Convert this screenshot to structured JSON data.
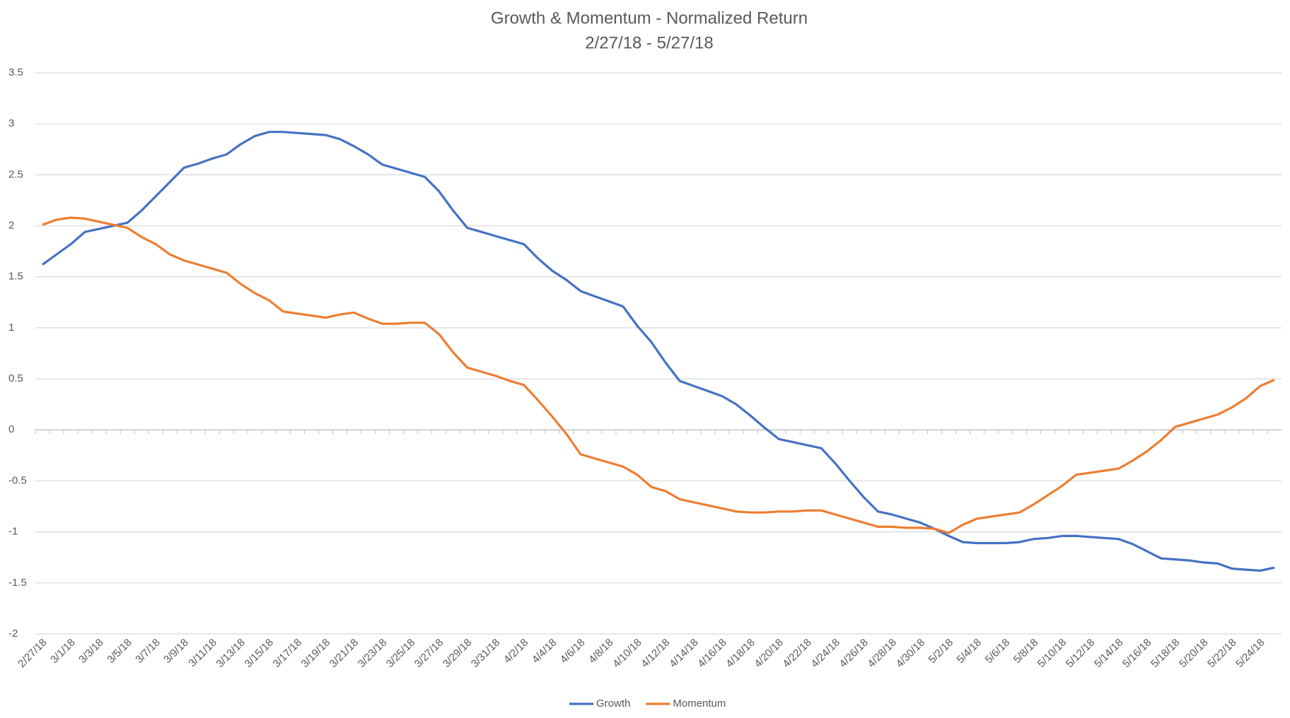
{
  "chart_data": {
    "type": "line",
    "title": "Growth & Momentum - Normalized Return",
    "subtitle": "2/27/18 - 5/27/18",
    "categories": [
      "2/27/18",
      null,
      "3/1/18",
      null,
      "3/3/18",
      null,
      "3/5/18",
      null,
      "3/7/18",
      null,
      "3/9/18",
      null,
      "3/11/18",
      null,
      "3/13/18",
      null,
      "3/15/18",
      null,
      "3/17/18",
      null,
      "3/19/18",
      null,
      "3/21/18",
      null,
      "3/23/18",
      null,
      "3/25/18",
      null,
      "3/27/18",
      null,
      "3/29/18",
      null,
      "3/31/18",
      null,
      "4/2/18",
      null,
      "4/4/18",
      null,
      "4/6/18",
      null,
      "4/8/18",
      null,
      "4/10/18",
      null,
      "4/12/18",
      null,
      "4/14/18",
      null,
      "4/16/18",
      null,
      "4/18/18",
      null,
      "4/20/18",
      null,
      "4/22/18",
      null,
      "4/24/18",
      null,
      "4/26/18",
      null,
      "4/28/18",
      null,
      "4/30/18",
      null,
      "5/2/18",
      null,
      "5/4/18",
      null,
      "5/6/18",
      null,
      "5/8/18",
      null,
      "5/10/18",
      null,
      "5/12/18",
      null,
      "5/14/18",
      null,
      "5/16/18",
      null,
      "5/18/18",
      null,
      "5/20/18",
      null,
      "5/22/18",
      null,
      "5/24/18",
      null
    ],
    "series": [
      {
        "name": "Growth",
        "color": "#4472c4",
        "values": [
          1.62,
          1.72,
          1.82,
          1.94,
          1.97,
          2.0,
          2.03,
          2.15,
          2.29,
          2.43,
          2.57,
          2.61,
          2.66,
          2.7,
          2.8,
          2.88,
          2.92,
          2.92,
          2.91,
          2.9,
          2.89,
          2.85,
          2.78,
          2.7,
          2.6,
          2.56,
          2.52,
          2.48,
          2.34,
          2.15,
          1.98,
          1.94,
          1.9,
          1.86,
          1.82,
          1.68,
          1.56,
          1.47,
          1.36,
          1.31,
          1.26,
          1.21,
          1.02,
          0.86,
          0.66,
          0.48,
          0.43,
          0.38,
          0.33,
          0.25,
          0.14,
          0.02,
          -0.09,
          -0.12,
          -0.15,
          -0.18,
          -0.33,
          -0.5,
          -0.66,
          -0.8,
          -0.83,
          -0.87,
          -0.91,
          -0.97,
          -1.04,
          -1.1,
          -1.11,
          -1.11,
          -1.11,
          -1.1,
          -1.07,
          -1.06,
          -1.04,
          -1.04,
          -1.05,
          -1.06,
          -1.07,
          -1.12,
          -1.19,
          -1.26,
          -1.27,
          -1.28,
          -1.3,
          -1.31,
          -1.36,
          -1.37,
          -1.38,
          -1.35
        ]
      },
      {
        "name": "Momentum",
        "color": "#ed7d31",
        "values": [
          2.01,
          2.06,
          2.08,
          2.07,
          2.04,
          2.01,
          1.98,
          1.89,
          1.82,
          1.72,
          1.66,
          1.62,
          1.58,
          1.54,
          1.43,
          1.34,
          1.27,
          1.16,
          1.14,
          1.12,
          1.1,
          1.13,
          1.15,
          1.09,
          1.04,
          1.04,
          1.05,
          1.05,
          0.94,
          0.76,
          0.61,
          0.57,
          0.53,
          0.48,
          0.44,
          0.29,
          0.13,
          -0.04,
          -0.24,
          -0.28,
          -0.32,
          -0.36,
          -0.44,
          -0.56,
          -0.6,
          -0.68,
          -0.71,
          -0.74,
          -0.77,
          -0.8,
          -0.81,
          -0.81,
          -0.8,
          -0.8,
          -0.79,
          -0.79,
          -0.83,
          -0.87,
          -0.91,
          -0.95,
          -0.95,
          -0.96,
          -0.96,
          -0.97,
          -1.01,
          -0.93,
          -0.87,
          -0.85,
          -0.83,
          -0.81,
          -0.73,
          -0.64,
          -0.55,
          -0.44,
          -0.42,
          -0.4,
          -0.38,
          -0.3,
          -0.21,
          -0.1,
          0.03,
          0.07,
          0.11,
          0.15,
          0.22,
          0.31,
          0.43,
          0.49
        ]
      }
    ],
    "ylim": [
      -2,
      3.5
    ],
    "yticks": [
      -2,
      -1.5,
      -1,
      -0.5,
      0,
      0.5,
      1,
      1.5,
      2,
      2.5,
      3,
      3.5
    ],
    "grid": true,
    "legend": "bottom"
  }
}
